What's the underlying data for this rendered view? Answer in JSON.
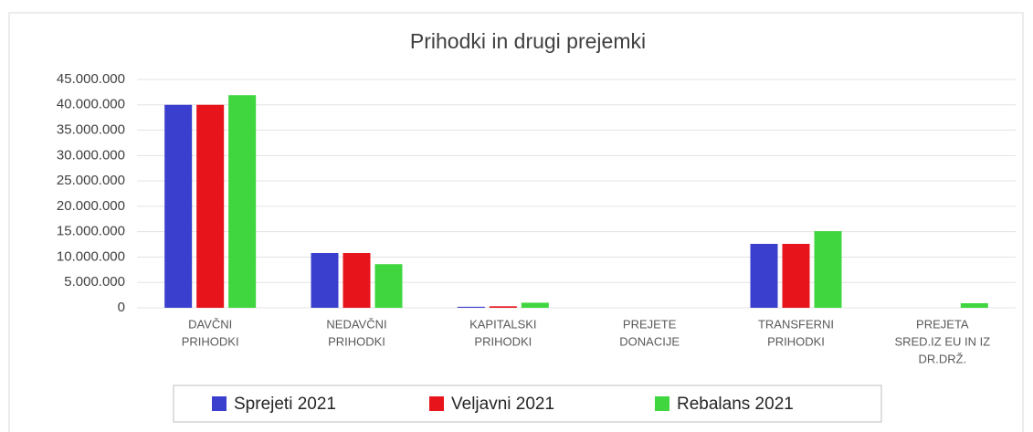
{
  "chart_data": {
    "type": "bar",
    "title": "Prihodki in drugi prejemki",
    "categories": [
      [
        "DAVČNI",
        "PRIHODKI"
      ],
      [
        "NEDAVČNI",
        "PRIHODKI"
      ],
      [
        "KAPITALSKI",
        "PRIHODKI"
      ],
      [
        "PREJETE",
        "DONACIJE"
      ],
      [
        "TRANSFERNI",
        "PRIHODKI"
      ],
      [
        "PREJETA",
        "SRED.IZ EU IN IZ",
        "DR.DRŽ."
      ]
    ],
    "series": [
      {
        "name": "Sprejeti 2021",
        "color": "#3b3fce",
        "values": [
          40000000,
          10800000,
          200000,
          0,
          12600000,
          0
        ]
      },
      {
        "name": "Veljavni 2021",
        "color": "#e8141b",
        "values": [
          40000000,
          10800000,
          300000,
          0,
          12600000,
          0
        ]
      },
      {
        "name": "Rebalans 2021",
        "color": "#3fd63f",
        "values": [
          41900000,
          8600000,
          1000000,
          0,
          15100000,
          900000
        ]
      }
    ],
    "ylim": [
      0,
      45000000
    ],
    "yticks": [
      0,
      {
        "value": 5000000,
        "label": "5.000.000"
      },
      {
        "value": 10000000,
        "label": "10.000.000"
      },
      {
        "value": 15000000,
        "label": "15.000.000"
      },
      {
        "value": 20000000,
        "label": "20.000.000"
      },
      {
        "value": 25000000,
        "label": "25.000.000"
      },
      {
        "value": 30000000,
        "label": "30.000.000"
      },
      {
        "value": 35000000,
        "label": "35.000.000"
      },
      {
        "value": 40000000,
        "label": "40.000.000"
      },
      {
        "value": 45000000,
        "label": "45.000.000"
      }
    ],
    "grid": true,
    "legend": "bottom"
  }
}
